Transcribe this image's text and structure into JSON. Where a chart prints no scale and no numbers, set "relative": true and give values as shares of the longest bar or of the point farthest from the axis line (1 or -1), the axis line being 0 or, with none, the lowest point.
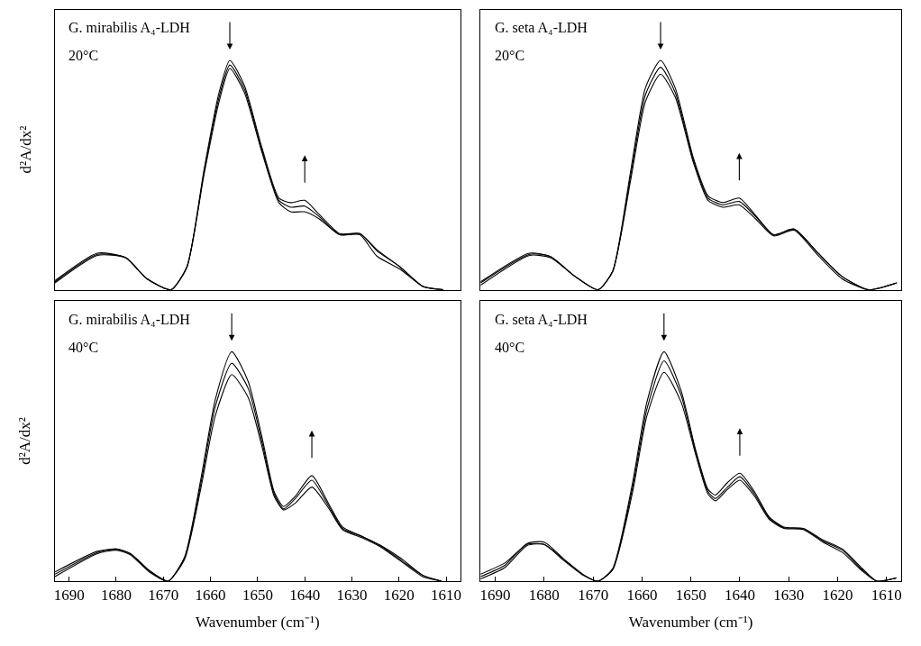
{
  "chart_data": [
    {
      "type": "line",
      "relative": true,
      "ylabel": "d²A/dx²",
      "tick_labels": false,
      "xlim": [
        1693,
        1607
      ],
      "xticks": [
        1690,
        1680,
        1670,
        1660,
        1650,
        1640,
        1630,
        1620,
        1610
      ],
      "annotations": [
        "G. mirabilis A₄-LDH",
        "20°C"
      ],
      "series": [
        {
          "color": "#000000",
          "x": [
            1693,
            1684,
            1678,
            1673.6,
            1668.4,
            1665,
            1661.4,
            1658.3,
            1655.9,
            1652.8,
            1649.1,
            1645.5,
            1643,
            1640,
            1637,
            1632.6,
            1628.3,
            1624.7,
            1619.8,
            1614.9,
            1610.6
          ],
          "values": [
            0.04,
            0.16,
            0.14,
            0.05,
            0.0,
            0.1,
            0.52,
            0.85,
            1.0,
            0.89,
            0.62,
            0.4,
            0.38,
            0.39,
            0.33,
            0.245,
            0.245,
            0.175,
            0.1,
            0.014,
            0.0
          ]
        },
        {
          "color": "#000000",
          "x": [
            1693,
            1684,
            1678,
            1673.6,
            1668.4,
            1665,
            1661.4,
            1658.3,
            1655.9,
            1652.8,
            1649.1,
            1645.5,
            1643,
            1640,
            1637,
            1632.6,
            1628.3,
            1624.7,
            1619.8,
            1614.9,
            1610.6
          ],
          "values": [
            0.035,
            0.155,
            0.14,
            0.05,
            0.0,
            0.1,
            0.51,
            0.83,
            0.98,
            0.875,
            0.61,
            0.39,
            0.36,
            0.365,
            0.32,
            0.24,
            0.245,
            0.17,
            0.1,
            0.014,
            0.0
          ]
        },
        {
          "color": "#000000",
          "x": [
            1693,
            1684,
            1678,
            1673.6,
            1668.4,
            1665,
            1661.4,
            1658.3,
            1655.9,
            1652.8,
            1649.1,
            1645.5,
            1643,
            1640,
            1637,
            1632.6,
            1628.3,
            1624.7,
            1619.8,
            1614.9,
            1610.6
          ],
          "values": [
            0.03,
            0.15,
            0.14,
            0.05,
            0.0,
            0.1,
            0.5,
            0.81,
            0.965,
            0.86,
            0.6,
            0.38,
            0.34,
            0.34,
            0.31,
            0.24,
            0.24,
            0.147,
            0.09,
            0.014,
            0.0
          ]
        }
      ]
    },
    {
      "type": "line",
      "relative": true,
      "tick_labels": false,
      "xlim": [
        1693,
        1607
      ],
      "xticks": [
        1690,
        1680,
        1670,
        1660,
        1650,
        1640,
        1630,
        1620,
        1610
      ],
      "annotations": [
        "G. seta A₄-LDH",
        "20°C"
      ],
      "series": [
        {
          "color": "#000000",
          "x": [
            1693,
            1683,
            1678.7,
            1673.8,
            1669,
            1666,
            1662.3,
            1659.3,
            1656.2,
            1653.2,
            1649.5,
            1646.5,
            1643.5,
            1640.1,
            1636.8,
            1633.1,
            1628.9,
            1624,
            1619.2,
            1613.7,
            1607.9
          ],
          "values": [
            0.035,
            0.16,
            0.145,
            0.06,
            0.0,
            0.08,
            0.52,
            0.88,
            1.0,
            0.88,
            0.575,
            0.41,
            0.38,
            0.4,
            0.325,
            0.24,
            0.265,
            0.16,
            0.06,
            0.0,
            0.03
          ]
        },
        {
          "color": "#000000",
          "x": [
            1693,
            1683,
            1678.7,
            1673.8,
            1669,
            1666,
            1662.3,
            1659.3,
            1656.2,
            1653.2,
            1649.5,
            1646.5,
            1643.5,
            1640.1,
            1636.8,
            1633.1,
            1628.9,
            1624,
            1619.2,
            1613.7,
            1607.9
          ],
          "values": [
            0.03,
            0.155,
            0.145,
            0.06,
            0.0,
            0.08,
            0.5,
            0.85,
            0.97,
            0.86,
            0.565,
            0.4,
            0.37,
            0.385,
            0.32,
            0.24,
            0.265,
            0.16,
            0.06,
            0.0,
            0.03
          ]
        },
        {
          "color": "#000000",
          "x": [
            1693,
            1683,
            1678.7,
            1673.8,
            1669,
            1666,
            1662.3,
            1659.3,
            1656.2,
            1653.2,
            1649.5,
            1646.5,
            1643.5,
            1640.1,
            1636.8,
            1633.1,
            1628.9,
            1624,
            1619.2,
            1613.7,
            1607.9
          ],
          "values": [
            0.02,
            0.15,
            0.14,
            0.06,
            0.0,
            0.08,
            0.48,
            0.82,
            0.94,
            0.84,
            0.555,
            0.39,
            0.36,
            0.37,
            0.31,
            0.235,
            0.26,
            0.15,
            0.05,
            0.0,
            0.03
          ]
        }
      ]
    },
    {
      "type": "line",
      "relative": true,
      "ylabel": "d²A/dx²",
      "xlabel": "Wavenumber (cm⁻¹)",
      "tick_labels": "x",
      "xlim": [
        1693,
        1607
      ],
      "xticks": [
        1690,
        1680,
        1670,
        1660,
        1650,
        1640,
        1630,
        1620,
        1610
      ],
      "annotations": [
        "G. mirabilis A₄-LDH",
        "40°C"
      ],
      "series": [
        {
          "color": "#000000",
          "x": [
            1693,
            1684,
            1680,
            1677,
            1673,
            1669,
            1665.5,
            1662,
            1659,
            1655.5,
            1652,
            1649,
            1646.5,
            1644.5,
            1642,
            1638.5,
            1635,
            1632,
            1628,
            1624,
            1619.5,
            1615,
            1611
          ],
          "values": [
            0.04,
            0.13,
            0.14,
            0.12,
            0.046,
            0.0,
            0.105,
            0.45,
            0.79,
            1.0,
            0.87,
            0.62,
            0.39,
            0.325,
            0.37,
            0.46,
            0.34,
            0.236,
            0.197,
            0.157,
            0.098,
            0.026,
            0.0
          ]
        },
        {
          "color": "#000000",
          "x": [
            1693,
            1684,
            1680,
            1677,
            1673,
            1669,
            1665.5,
            1662,
            1659,
            1655.5,
            1652,
            1649,
            1646.5,
            1644.5,
            1642,
            1638.5,
            1635,
            1632,
            1628,
            1624,
            1619.5,
            1615,
            1611
          ],
          "values": [
            0.03,
            0.125,
            0.14,
            0.12,
            0.046,
            0.0,
            0.1,
            0.43,
            0.76,
            0.95,
            0.84,
            0.6,
            0.38,
            0.315,
            0.36,
            0.44,
            0.33,
            0.23,
            0.195,
            0.155,
            0.09,
            0.026,
            0.0
          ]
        },
        {
          "color": "#000000",
          "x": [
            1693,
            1684,
            1680,
            1677,
            1673,
            1669,
            1665.5,
            1662,
            1659,
            1655.5,
            1652,
            1649,
            1646.5,
            1644.5,
            1642,
            1638.5,
            1635,
            1632,
            1628,
            1624,
            1619.5,
            1615,
            1611
          ],
          "values": [
            0.02,
            0.12,
            0.135,
            0.115,
            0.04,
            0.0,
            0.095,
            0.41,
            0.72,
            0.9,
            0.8,
            0.58,
            0.37,
            0.31,
            0.34,
            0.41,
            0.32,
            0.225,
            0.19,
            0.15,
            0.085,
            0.02,
            0.0
          ]
        }
      ]
    },
    {
      "type": "line",
      "relative": true,
      "xlabel": "Wavenumber (cm⁻¹)",
      "tick_labels": "x",
      "xlim": [
        1693,
        1607
      ],
      "xticks": [
        1690,
        1680,
        1670,
        1660,
        1650,
        1640,
        1630,
        1620,
        1610
      ],
      "annotations": [
        "G. seta A₄-LDH",
        "40°C"
      ],
      "series": [
        {
          "color": "#000000",
          "x": [
            1693,
            1688,
            1683.5,
            1680,
            1676,
            1672,
            1669,
            1666,
            1662,
            1659,
            1655.5,
            1652,
            1649,
            1646.5,
            1645,
            1642.5,
            1640,
            1637,
            1634,
            1631,
            1627,
            1623,
            1619,
            1615,
            1612,
            1608
          ],
          "values": [
            0.02,
            0.07,
            0.164,
            0.17,
            0.097,
            0.028,
            0.0,
            0.055,
            0.42,
            0.78,
            1.0,
            0.83,
            0.57,
            0.4,
            0.375,
            0.43,
            0.47,
            0.39,
            0.28,
            0.236,
            0.23,
            0.18,
            0.14,
            0.056,
            0.0,
            0.014
          ]
        },
        {
          "color": "#000000",
          "x": [
            1693,
            1688,
            1683.5,
            1680,
            1676,
            1672,
            1669,
            1666,
            1662,
            1659,
            1655.5,
            1652,
            1649,
            1646.5,
            1645,
            1642.5,
            1640,
            1637,
            1634,
            1631,
            1627,
            1623,
            1619,
            1615,
            1612,
            1608
          ],
          "values": [
            0.03,
            0.08,
            0.16,
            0.16,
            0.095,
            0.028,
            0.0,
            0.05,
            0.4,
            0.75,
            0.96,
            0.81,
            0.56,
            0.39,
            0.36,
            0.41,
            0.455,
            0.38,
            0.275,
            0.233,
            0.228,
            0.175,
            0.135,
            0.05,
            0.0,
            0.014
          ]
        },
        {
          "color": "#000000",
          "x": [
            1693,
            1688,
            1683.5,
            1680,
            1676,
            1672,
            1669,
            1666,
            1662,
            1659,
            1655.5,
            1652,
            1649,
            1646.5,
            1645,
            1642.5,
            1640,
            1637,
            1634,
            1631,
            1627,
            1623,
            1619,
            1615,
            1612,
            1608
          ],
          "values": [
            0.01,
            0.06,
            0.155,
            0.16,
            0.09,
            0.025,
            0.0,
            0.05,
            0.38,
            0.72,
            0.91,
            0.78,
            0.55,
            0.38,
            0.35,
            0.4,
            0.44,
            0.37,
            0.27,
            0.23,
            0.225,
            0.17,
            0.125,
            0.045,
            0.0,
            0.014
          ]
        }
      ]
    }
  ]
}
